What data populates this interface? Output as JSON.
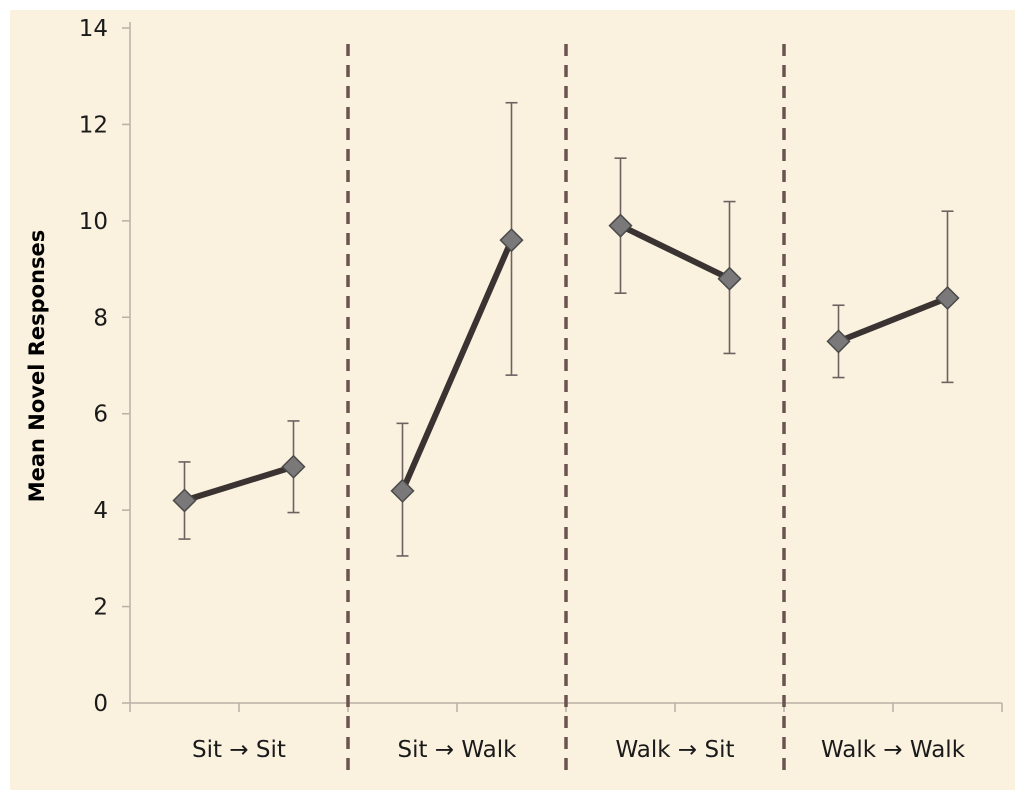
{
  "chart_data": {
    "type": "line",
    "title": "",
    "ylabel": "Mean Novel Responses",
    "xlabel": "",
    "ylim": [
      0,
      14
    ],
    "yticks": [
      0,
      2,
      4,
      6,
      8,
      10,
      12,
      14
    ],
    "grid": false,
    "legend": "none",
    "groups": [
      {
        "label": "Sit → Sit",
        "from": "Sit",
        "to": "Sit",
        "values": [
          4.2,
          4.9
        ],
        "err_upper": [
          5.0,
          5.85
        ],
        "err_lower": [
          3.4,
          3.95
        ]
      },
      {
        "label": "Sit → Walk",
        "from": "Sit",
        "to": "Walk",
        "values": [
          4.4,
          9.6
        ],
        "err_upper": [
          5.8,
          12.45
        ],
        "err_lower": [
          3.05,
          6.8
        ]
      },
      {
        "label": "Walk → Sit",
        "from": "Walk",
        "to": "Sit",
        "values": [
          9.9,
          8.8
        ],
        "err_upper": [
          11.3,
          10.4
        ],
        "err_lower": [
          8.5,
          7.25
        ]
      },
      {
        "label": "Walk → Walk",
        "from": "Walk",
        "to": "Walk",
        "values": [
          7.5,
          8.4
        ],
        "err_upper": [
          8.25,
          10.2
        ],
        "err_lower": [
          6.75,
          6.65
        ]
      }
    ],
    "colors": {
      "background": "#faf1df",
      "line": "#3a3331",
      "marker": "#7a7878",
      "marker_edge": "#4a4a4a",
      "error_bar": "#6e6260",
      "divider": "#6b5450",
      "axis": "#b9b0a6",
      "text": "#1a1a1a"
    }
  }
}
